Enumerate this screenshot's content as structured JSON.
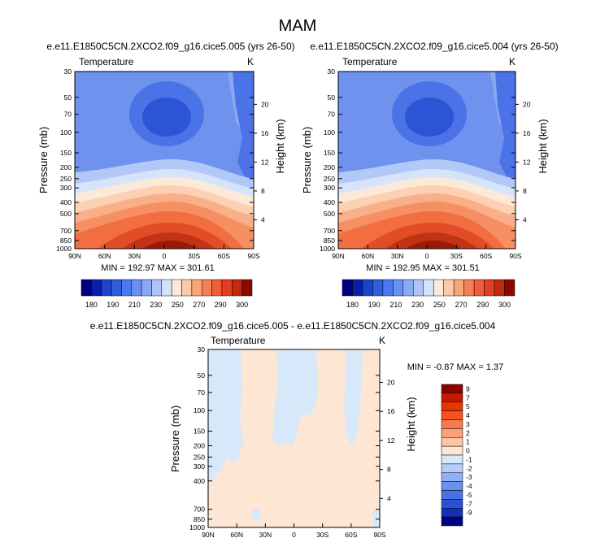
{
  "page_title": "MAM",
  "chart_data": [
    {
      "type": "heatmap",
      "title": "e.e11.E1850C5CN.2XCO2.f09_g16.cice5.005 (yrs 26-50)",
      "left_label": "Temperature",
      "units": "K",
      "ylabel": "Pressure (mb)",
      "y2label": "Height (km)",
      "x_ticks": [
        "90N",
        "60N",
        "30N",
        "0",
        "30S",
        "60S",
        "90S"
      ],
      "y_ticks": [
        "30",
        "50",
        "70",
        "100",
        "150",
        "200",
        "250",
        "300",
        "400",
        "500",
        "700",
        "850",
        "1000"
      ],
      "height_ticks": [
        "20",
        "16",
        "12",
        "8",
        "4"
      ],
      "stats": "MIN = 192.97   MAX = 301.61",
      "min": 192.97,
      "max": 301.61
    },
    {
      "type": "heatmap",
      "title": "e.e11.E1850C5CN.2XCO2.f09_g16.cice5.004 (yrs 26-50)",
      "left_label": "Temperature",
      "units": "K",
      "ylabel": "Pressure (mb)",
      "y2label": "Height (km)",
      "x_ticks": [
        "90N",
        "60N",
        "30N",
        "0",
        "30S",
        "60S",
        "90S"
      ],
      "y_ticks": [
        "30",
        "50",
        "70",
        "100",
        "150",
        "200",
        "250",
        "300",
        "400",
        "500",
        "700",
        "850",
        "1000"
      ],
      "height_ticks": [
        "20",
        "16",
        "12",
        "8",
        "4"
      ],
      "stats": "MIN = 192.95   MAX = 301.51",
      "min": 192.95,
      "max": 301.51
    },
    {
      "type": "heatmap",
      "title": "e.e11.E1850C5CN.2XCO2.f09_g16.cice5.005 - e.e11.E1850C5CN.2XCO2.f09_g16.cice5.004",
      "left_label": "Temperature",
      "units": "K",
      "ylabel": "Pressure (mb)",
      "y2label": "Height (km)",
      "x_ticks": [
        "90N",
        "60N",
        "30N",
        "0",
        "30S",
        "60S",
        "90S"
      ],
      "y_ticks": [
        "30",
        "50",
        "70",
        "100",
        "150",
        "200",
        "250",
        "300",
        "400",
        "700",
        "850",
        "1000"
      ],
      "height_ticks": [
        "20",
        "16",
        "12",
        "8",
        "4"
      ],
      "stats": "MIN =  -0.87   MAX =   1.37",
      "min": -0.87,
      "max": 1.37
    }
  ],
  "colorbar_temp": {
    "labels": [
      "180",
      "190",
      "210",
      "230",
      "250",
      "270",
      "290",
      "300"
    ],
    "colors": [
      "#000080",
      "#0a1fa8",
      "#1c43cc",
      "#2f5fe0",
      "#4a78ee",
      "#6a90f5",
      "#8aaaf7",
      "#aec4f9",
      "#d3e3fa",
      "#fde9d8",
      "#fcc9a6",
      "#f9a47a",
      "#f77e54",
      "#f15d36",
      "#e13f20",
      "#c42a10",
      "#8b0a00"
    ]
  },
  "colorbar_diff": {
    "labels": [
      "9",
      "7",
      "5",
      "4",
      "3",
      "2",
      "1",
      "0",
      "-1",
      "-2",
      "-3",
      "-4",
      "-5",
      "-7",
      "-9"
    ],
    "colors": [
      "#8b0000",
      "#c21b00",
      "#e63500",
      "#f35420",
      "#f87a4a",
      "#fba078",
      "#fdc4a6",
      "#fde6d4",
      "#d7e8fb",
      "#b6cdf9",
      "#90b0f5",
      "#6c90f0",
      "#4a70e6",
      "#2c50d6",
      "#1530b2",
      "#000080"
    ]
  }
}
